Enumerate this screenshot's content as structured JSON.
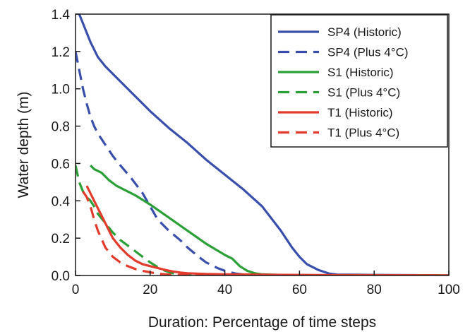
{
  "chart_data": {
    "type": "line",
    "xlabel": "Duration: Percentage of time steps",
    "ylabel": "Water depth (m)",
    "xlim": [
      0,
      100
    ],
    "ylim": [
      0,
      1.4
    ],
    "x_ticks": [
      0,
      20,
      40,
      60,
      80,
      100
    ],
    "y_ticks": [
      0.0,
      0.2,
      0.4,
      0.6,
      0.8,
      1.0,
      1.2,
      1.4
    ],
    "y_tick_labels": [
      "0.0",
      "0.2",
      "0.4",
      "0.6",
      "0.8",
      "1.0",
      "1.2",
      "1.4"
    ],
    "grid": false,
    "legend_position": "top-right",
    "series": [
      {
        "name": "SP4 (Historic)",
        "color": "#3a4fad",
        "dash": "solid",
        "x": [
          1,
          2,
          4,
          6,
          8,
          10,
          15,
          20,
          25,
          30,
          35,
          40,
          45,
          50,
          55,
          58,
          60,
          62,
          65,
          68,
          70,
          80,
          90,
          100
        ],
        "y": [
          1.4,
          1.35,
          1.25,
          1.17,
          1.12,
          1.08,
          0.98,
          0.88,
          0.79,
          0.71,
          0.62,
          0.54,
          0.46,
          0.37,
          0.24,
          0.15,
          0.1,
          0.06,
          0.03,
          0.01,
          0.005,
          0.003,
          0.002,
          0.0
        ]
      },
      {
        "name": "SP4 (Plus 4°C)",
        "color": "#3a4fad",
        "dash": "dashed",
        "x": [
          0,
          1,
          2,
          3,
          4,
          5,
          6,
          8,
          10,
          12,
          15,
          18,
          20,
          22,
          25,
          28,
          30,
          33,
          35,
          38,
          40,
          43,
          45,
          50,
          60,
          70,
          80,
          90,
          100
        ],
        "y": [
          1.2,
          1.1,
          1.0,
          0.92,
          0.85,
          0.8,
          0.76,
          0.7,
          0.64,
          0.59,
          0.52,
          0.44,
          0.37,
          0.3,
          0.24,
          0.19,
          0.15,
          0.1,
          0.07,
          0.04,
          0.025,
          0.01,
          0.005,
          0.003,
          0.002,
          0.001,
          0.001,
          0.001,
          0.0
        ]
      },
      {
        "name": "S1 (Historic)",
        "color": "#2aa037",
        "dash": "solid",
        "x": [
          4,
          5,
          7,
          9,
          11,
          13,
          16,
          20,
          25,
          30,
          35,
          40,
          42,
          44,
          46,
          48,
          50,
          55,
          60,
          70,
          80,
          90,
          100
        ],
        "y": [
          0.59,
          0.57,
          0.55,
          0.51,
          0.48,
          0.46,
          0.43,
          0.38,
          0.31,
          0.24,
          0.17,
          0.11,
          0.09,
          0.05,
          0.025,
          0.012,
          0.006,
          0.003,
          0.002,
          0.001,
          0.001,
          0.001,
          0.0
        ]
      },
      {
        "name": "S1 (Plus 4°C)",
        "color": "#2aa037",
        "dash": "dashed",
        "x": [
          0,
          1,
          2,
          3,
          4,
          5,
          6,
          8,
          10,
          12,
          14,
          16,
          18,
          20,
          22,
          24,
          26,
          28,
          30,
          40,
          50,
          60,
          70,
          80,
          90,
          100
        ],
        "y": [
          0.59,
          0.5,
          0.45,
          0.42,
          0.4,
          0.37,
          0.33,
          0.28,
          0.23,
          0.19,
          0.16,
          0.13,
          0.1,
          0.07,
          0.045,
          0.025,
          0.012,
          0.006,
          0.004,
          0.002,
          0.001,
          0.001,
          0.001,
          0.001,
          0.001,
          0.0
        ]
      },
      {
        "name": "T1 (Historic)",
        "color": "#e23a2b",
        "dash": "solid",
        "x": [
          3,
          4,
          5,
          6,
          8,
          10,
          12,
          14,
          16,
          18,
          20,
          22,
          24,
          26,
          28,
          30,
          35,
          40,
          50,
          60,
          70,
          80,
          90,
          100
        ],
        "y": [
          0.48,
          0.44,
          0.4,
          0.36,
          0.28,
          0.2,
          0.15,
          0.11,
          0.08,
          0.06,
          0.05,
          0.04,
          0.03,
          0.022,
          0.016,
          0.012,
          0.008,
          0.006,
          0.004,
          0.003,
          0.002,
          0.002,
          0.001,
          0.0
        ]
      },
      {
        "name": "T1 (Plus 4°C)",
        "color": "#e23a2b",
        "dash": "dashed",
        "x": [
          2,
          3,
          4,
          5,
          6,
          8,
          10,
          12,
          14,
          16,
          18,
          20,
          22,
          24,
          26,
          30,
          40,
          50,
          60,
          70,
          80,
          90,
          100
        ],
        "y": [
          0.45,
          0.42,
          0.37,
          0.3,
          0.24,
          0.15,
          0.1,
          0.07,
          0.05,
          0.035,
          0.025,
          0.017,
          0.01,
          0.006,
          0.004,
          0.003,
          0.002,
          0.001,
          0.001,
          0.001,
          0.001,
          0.001,
          0.0
        ]
      }
    ]
  }
}
